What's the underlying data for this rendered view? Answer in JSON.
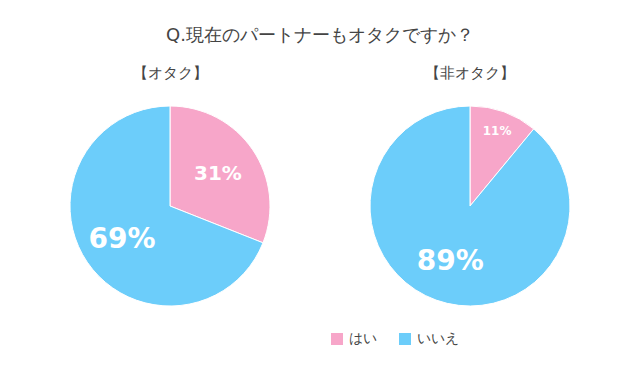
{
  "chart_data": [
    {
      "type": "pie",
      "title": "Q.現在のパートナーもオタクですか？",
      "subtitle": "【オタク】",
      "categories": [
        "はい",
        "いいえ"
      ],
      "values": [
        31,
        69
      ],
      "value_labels": [
        "31%",
        "69%"
      ],
      "colors": [
        "#f7a6c9",
        "#6ccdfa"
      ],
      "data_labels": true,
      "legend": "bottom"
    },
    {
      "type": "pie",
      "subtitle": "【非オタク】",
      "categories": [
        "はい",
        "いいえ"
      ],
      "values": [
        11,
        89
      ],
      "value_labels": [
        "11%",
        "89%"
      ],
      "colors": [
        "#f7a6c9",
        "#6ccdfa"
      ],
      "data_labels": true
    }
  ]
}
